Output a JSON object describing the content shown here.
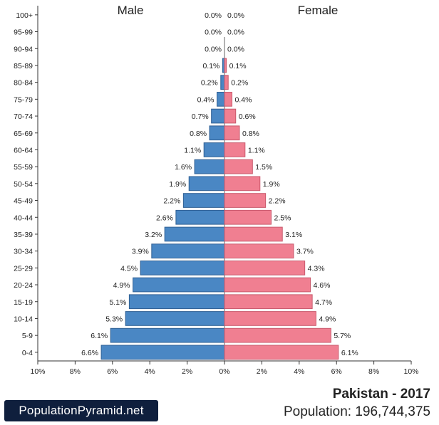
{
  "chart_data": {
    "type": "bar",
    "orientation": "horizontal-pyramid",
    "title": "Pakistan - 2017",
    "population_label": "Population: 196,744,375",
    "brand": "PopulationPyramid.net",
    "xlim": [
      -10,
      10
    ],
    "x_ticks": [
      "10%",
      "8%",
      "6%",
      "4%",
      "2%",
      "0%",
      "2%",
      "4%",
      "6%",
      "8%",
      "10%"
    ],
    "categories": [
      "100+",
      "95-99",
      "90-94",
      "85-89",
      "80-84",
      "75-79",
      "70-74",
      "65-69",
      "60-64",
      "55-59",
      "50-54",
      "45-49",
      "40-44",
      "35-39",
      "30-34",
      "25-29",
      "20-24",
      "15-19",
      "10-14",
      "5-9",
      "0-4"
    ],
    "series": [
      {
        "name": "Male",
        "color": "#4a87c4",
        "values": [
          0.0,
          0.0,
          0.0,
          0.1,
          0.2,
          0.4,
          0.7,
          0.8,
          1.1,
          1.6,
          1.9,
          2.2,
          2.6,
          3.2,
          3.9,
          4.5,
          4.9,
          5.1,
          5.3,
          6.1,
          6.6
        ],
        "labels": [
          "0.0%",
          "0.0%",
          "0.0%",
          "0.1%",
          "0.2%",
          "0.4%",
          "0.7%",
          "0.8%",
          "1.1%",
          "1.6%",
          "1.9%",
          "2.2%",
          "2.6%",
          "3.2%",
          "3.9%",
          "4.5%",
          "4.9%",
          "5.1%",
          "5.3%",
          "6.1%",
          "6.6%"
        ]
      },
      {
        "name": "Female",
        "color": "#f07f91",
        "values": [
          0.0,
          0.0,
          0.0,
          0.1,
          0.2,
          0.4,
          0.6,
          0.8,
          1.1,
          1.5,
          1.9,
          2.2,
          2.5,
          3.1,
          3.7,
          4.3,
          4.6,
          4.7,
          4.9,
          5.7,
          6.1
        ],
        "labels": [
          "0.0%",
          "0.0%",
          "0.0%",
          "0.1%",
          "0.2%",
          "0.4%",
          "0.6%",
          "0.8%",
          "1.1%",
          "1.5%",
          "1.9%",
          "2.2%",
          "2.5%",
          "3.1%",
          "3.7%",
          "4.3%",
          "4.6%",
          "4.7%",
          "4.9%",
          "5.7%",
          "6.1%"
        ]
      }
    ]
  }
}
